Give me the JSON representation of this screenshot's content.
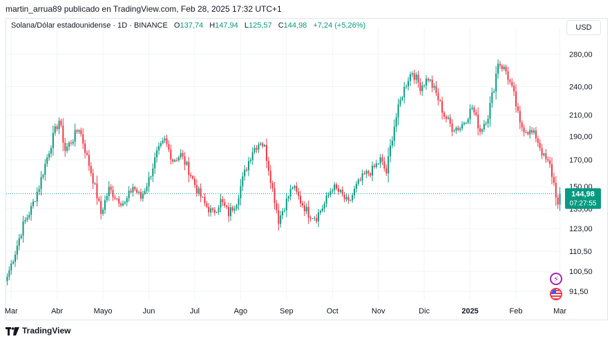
{
  "header": {
    "published_by": "martin_arrua89 publicado en TradingView.com, Feb 28, 2025 17:32 UTC+1"
  },
  "legend": {
    "symbol": "Solana/Dólar estadounidense · 1D · BINANCE",
    "open_label": "O",
    "open": "137,74",
    "high_label": "H",
    "high": "147,94",
    "low_label": "L",
    "low": "125,57",
    "close_label": "C",
    "close": "144,98",
    "change": "+7,24 (+5,26%)"
  },
  "currency_button": "USD",
  "price_badge": {
    "price": "144,98",
    "countdown": "07:27:55"
  },
  "footer": {
    "brand": "TradingView"
  },
  "colors": {
    "up": "#089981",
    "down": "#f23645",
    "grid": "#f0f3fa",
    "axis_text": "#131722"
  },
  "icons": {
    "event_1": "lightning-icon",
    "event_2": "us-flag-icon",
    "logo": "tradingview-logo-icon"
  },
  "chart_data": {
    "type": "candlestick",
    "scale": "log",
    "ylim": [
      88,
      305
    ],
    "y_ticks": [
      {
        "value": 91.5,
        "label": "91,50"
      },
      {
        "value": 100.5,
        "label": "100,50"
      },
      {
        "value": 110.5,
        "label": "110,50"
      },
      {
        "value": 123,
        "label": "123,00"
      },
      {
        "value": 135,
        "label": "135,00"
      },
      {
        "value": 150,
        "label": "150,00"
      },
      {
        "value": 170,
        "label": "170,00"
      },
      {
        "value": 190,
        "label": "190,00"
      },
      {
        "value": 210,
        "label": "210,00"
      },
      {
        "value": 240,
        "label": "240,00"
      },
      {
        "value": 280,
        "label": "280,00"
      }
    ],
    "x_ticks": [
      {
        "label": "Mar",
        "bold": false
      },
      {
        "label": "Abr",
        "bold": false
      },
      {
        "label": "Mayo",
        "bold": false
      },
      {
        "label": "Jun",
        "bold": false
      },
      {
        "label": "Jul",
        "bold": false
      },
      {
        "label": "Ago",
        "bold": false
      },
      {
        "label": "Sep",
        "bold": false
      },
      {
        "label": "Oct",
        "bold": false
      },
      {
        "label": "Nov",
        "bold": false
      },
      {
        "label": "Dic",
        "bold": false
      },
      {
        "label": "2025",
        "bold": true
      },
      {
        "label": "Feb",
        "bold": false
      },
      {
        "label": "Mar",
        "bold": false
      }
    ],
    "last_price": 144.98,
    "anchors": [
      [
        0,
        98
      ],
      [
        4,
        110
      ],
      [
        8,
        125
      ],
      [
        12,
        135
      ],
      [
        16,
        150
      ],
      [
        20,
        172
      ],
      [
        24,
        195
      ],
      [
        26,
        205
      ],
      [
        29,
        178
      ],
      [
        33,
        188
      ],
      [
        36,
        198
      ],
      [
        40,
        172
      ],
      [
        43,
        155
      ],
      [
        47,
        132
      ],
      [
        51,
        148
      ],
      [
        55,
        142
      ],
      [
        59,
        138
      ],
      [
        63,
        150
      ],
      [
        67,
        142
      ],
      [
        71,
        155
      ],
      [
        75,
        175
      ],
      [
        79,
        186
      ],
      [
        83,
        170
      ],
      [
        87,
        174
      ],
      [
        91,
        162
      ],
      [
        95,
        148
      ],
      [
        99,
        138
      ],
      [
        103,
        132
      ],
      [
        107,
        140
      ],
      [
        111,
        132
      ],
      [
        115,
        140
      ],
      [
        119,
        160
      ],
      [
        123,
        178
      ],
      [
        127,
        186
      ],
      [
        129,
        180
      ],
      [
        133,
        148
      ],
      [
        136,
        128
      ],
      [
        140,
        140
      ],
      [
        143,
        150
      ],
      [
        147,
        140
      ],
      [
        151,
        132
      ],
      [
        155,
        130
      ],
      [
        159,
        138
      ],
      [
        163,
        150
      ],
      [
        167,
        145
      ],
      [
        171,
        138
      ],
      [
        175,
        150
      ],
      [
        179,
        158
      ],
      [
        183,
        162
      ],
      [
        187,
        170
      ],
      [
        190,
        160
      ],
      [
        194,
        200
      ],
      [
        198,
        232
      ],
      [
        201,
        250
      ],
      [
        203,
        258
      ],
      [
        207,
        240
      ],
      [
        211,
        250
      ],
      [
        215,
        232
      ],
      [
        219,
        210
      ],
      [
        223,
        198
      ],
      [
        227,
        198
      ],
      [
        231,
        210
      ],
      [
        233,
        218
      ],
      [
        237,
        195
      ],
      [
        241,
        210
      ],
      [
        244,
        240
      ],
      [
        246,
        270
      ],
      [
        250,
        258
      ],
      [
        254,
        230
      ],
      [
        257,
        200
      ],
      [
        261,
        195
      ],
      [
        265,
        190
      ],
      [
        269,
        172
      ],
      [
        272,
        165
      ],
      [
        274,
        152
      ],
      [
        276,
        137.74
      ],
      [
        277,
        144.98
      ]
    ]
  }
}
